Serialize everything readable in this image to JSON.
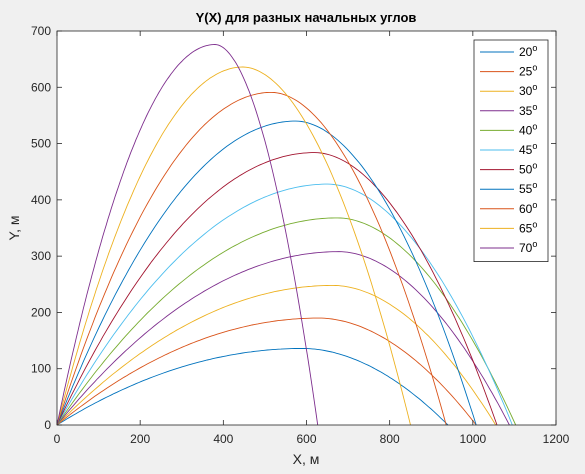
{
  "chart_data": {
    "type": "line",
    "title": "Y(X) для разных начальных углов",
    "xlabel": "X, м",
    "ylabel": "Y, м",
    "xlim": [
      0,
      1200
    ],
    "ylim": [
      0,
      700
    ],
    "x_ticks": [
      "0",
      "200",
      "400",
      "600",
      "800",
      "1000",
      "1200"
    ],
    "y_ticks": [
      "0",
      "100",
      "200",
      "300",
      "400",
      "500",
      "600",
      "700"
    ],
    "grid": false,
    "legend_position": "top-right",
    "series": [
      {
        "name": "20",
        "color": "#0072BD",
        "apex_x": 591,
        "apex_y": 136,
        "range_x": 940
      },
      {
        "name": "25",
        "color": "#D95319",
        "apex_x": 630,
        "apex_y": 190,
        "range_x": 1008
      },
      {
        "name": "30",
        "color": "#EDB120",
        "apex_x": 664,
        "apex_y": 248,
        "range_x": 1055
      },
      {
        "name": "35",
        "color": "#7E2F8E",
        "apex_x": 678,
        "apex_y": 308,
        "range_x": 1088
      },
      {
        "name": "40",
        "color": "#77AC30",
        "apex_x": 675,
        "apex_y": 368,
        "range_x": 1103
      },
      {
        "name": "45",
        "color": "#4DBEEE",
        "apex_x": 651,
        "apex_y": 428,
        "range_x": 1095
      },
      {
        "name": "50",
        "color": "#A2142F",
        "apex_x": 620,
        "apex_y": 484,
        "range_x": 1058
      },
      {
        "name": "55",
        "color": "#0072BD",
        "apex_x": 574,
        "apex_y": 540,
        "range_x": 1008
      },
      {
        "name": "60",
        "color": "#D95319",
        "apex_x": 516,
        "apex_y": 591,
        "range_x": 936
      },
      {
        "name": "65",
        "color": "#EDB120",
        "apex_x": 447,
        "apex_y": 636,
        "range_x": 850
      },
      {
        "name": "70",
        "color": "#7E2F8E",
        "apex_x": 380,
        "apex_y": 676,
        "range_x": 627
      }
    ],
    "legend_suffix": "o"
  }
}
